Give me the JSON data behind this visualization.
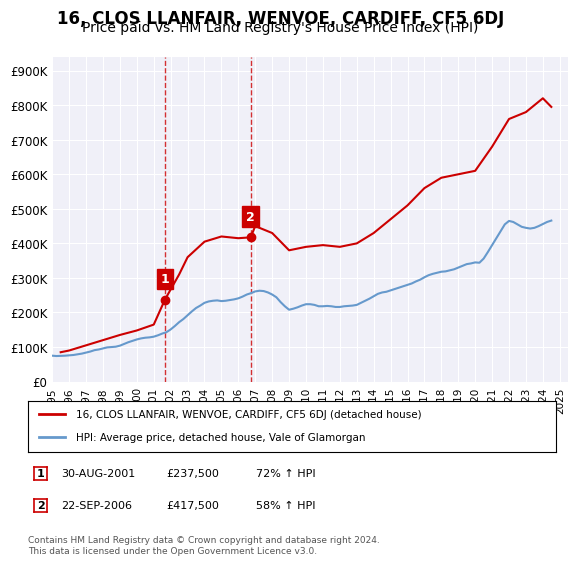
{
  "title": "16, CLOS LLANFAIR, WENVOE, CARDIFF, CF5 6DJ",
  "subtitle": "Price paid vs. HM Land Registry's House Price Index (HPI)",
  "title_fontsize": 12,
  "subtitle_fontsize": 10,
  "bg_color": "#ffffff",
  "plot_bg_color": "#f0f0f8",
  "ylabel_ticks": [
    "£0",
    "£100K",
    "£200K",
    "£300K",
    "£400K",
    "£500K",
    "£600K",
    "£700K",
    "£800K",
    "£900K"
  ],
  "ytick_values": [
    0,
    100000,
    200000,
    300000,
    400000,
    500000,
    600000,
    700000,
    800000,
    900000
  ],
  "ylim": [
    0,
    940000
  ],
  "xlim_start": 1995.0,
  "xlim_end": 2025.5,
  "xtick_years": [
    1995,
    1996,
    1997,
    1998,
    1999,
    2000,
    2001,
    2002,
    2003,
    2004,
    2005,
    2006,
    2007,
    2008,
    2009,
    2010,
    2011,
    2012,
    2013,
    2014,
    2015,
    2016,
    2017,
    2018,
    2019,
    2020,
    2021,
    2022,
    2023,
    2024,
    2025
  ],
  "red_line_color": "#cc0000",
  "blue_line_color": "#6699cc",
  "marker1_date": 2001.664,
  "marker1_label": "1",
  "marker1_price": 237500,
  "marker2_date": 2006.726,
  "marker2_label": "2",
  "marker2_price": 417500,
  "vline_color": "#cc0000",
  "annotation_box_color": "#cc0000",
  "legend_label_red": "16, CLOS LLANFAIR, WENVOE, CARDIFF, CF5 6DJ (detached house)",
  "legend_label_blue": "HPI: Average price, detached house, Vale of Glamorgan",
  "table_row1": [
    "1",
    "30-AUG-2001",
    "£237,500",
    "72% ↑ HPI"
  ],
  "table_row2": [
    "2",
    "22-SEP-2006",
    "£417,500",
    "58% ↑ HPI"
  ],
  "footer_text": "Contains HM Land Registry data © Crown copyright and database right 2024.\nThis data is licensed under the Open Government Licence v3.0.",
  "hpi_data": {
    "years": [
      1995.0,
      1995.25,
      1995.5,
      1995.75,
      1996.0,
      1996.25,
      1996.5,
      1996.75,
      1997.0,
      1997.25,
      1997.5,
      1997.75,
      1998.0,
      1998.25,
      1998.5,
      1998.75,
      1999.0,
      1999.25,
      1999.5,
      1999.75,
      2000.0,
      2000.25,
      2000.5,
      2000.75,
      2001.0,
      2001.25,
      2001.5,
      2001.75,
      2002.0,
      2002.25,
      2002.5,
      2002.75,
      2003.0,
      2003.25,
      2003.5,
      2003.75,
      2004.0,
      2004.25,
      2004.5,
      2004.75,
      2005.0,
      2005.25,
      2005.5,
      2005.75,
      2006.0,
      2006.25,
      2006.5,
      2006.75,
      2007.0,
      2007.25,
      2007.5,
      2007.75,
      2008.0,
      2008.25,
      2008.5,
      2008.75,
      2009.0,
      2009.25,
      2009.5,
      2009.75,
      2010.0,
      2010.25,
      2010.5,
      2010.75,
      2011.0,
      2011.25,
      2011.5,
      2011.75,
      2012.0,
      2012.25,
      2012.5,
      2012.75,
      2013.0,
      2013.25,
      2013.5,
      2013.75,
      2014.0,
      2014.25,
      2014.5,
      2014.75,
      2015.0,
      2015.25,
      2015.5,
      2015.75,
      2016.0,
      2016.25,
      2016.5,
      2016.75,
      2017.0,
      2017.25,
      2017.5,
      2017.75,
      2018.0,
      2018.25,
      2018.5,
      2018.75,
      2019.0,
      2019.25,
      2019.5,
      2019.75,
      2020.0,
      2020.25,
      2020.5,
      2020.75,
      2021.0,
      2021.25,
      2021.5,
      2021.75,
      2022.0,
      2022.25,
      2022.5,
      2022.75,
      2023.0,
      2023.25,
      2023.5,
      2023.75,
      2024.0,
      2024.25,
      2024.5
    ],
    "values": [
      75000,
      74000,
      74500,
      75000,
      76000,
      77000,
      79000,
      81000,
      84000,
      87000,
      91000,
      93000,
      96000,
      99000,
      100000,
      101000,
      104000,
      109000,
      114000,
      118000,
      122000,
      125000,
      127000,
      128000,
      130000,
      134000,
      139000,
      143000,
      151000,
      161000,
      172000,
      181000,
      192000,
      203000,
      213000,
      220000,
      228000,
      232000,
      234000,
      235000,
      233000,
      234000,
      236000,
      238000,
      241000,
      246000,
      252000,
      256000,
      261000,
      263000,
      262000,
      258000,
      252000,
      244000,
      230000,
      218000,
      208000,
      211000,
      215000,
      220000,
      224000,
      224000,
      222000,
      218000,
      218000,
      219000,
      218000,
      216000,
      216000,
      218000,
      219000,
      220000,
      222000,
      228000,
      234000,
      240000,
      247000,
      254000,
      258000,
      260000,
      264000,
      268000,
      272000,
      276000,
      280000,
      284000,
      290000,
      295000,
      302000,
      308000,
      312000,
      315000,
      318000,
      319000,
      322000,
      325000,
      330000,
      335000,
      340000,
      342000,
      345000,
      344000,
      356000,
      375000,
      395000,
      415000,
      435000,
      455000,
      465000,
      462000,
      455000,
      448000,
      445000,
      443000,
      445000,
      450000,
      456000,
      462000,
      466000
    ]
  },
  "price_data": {
    "years": [
      1995.5,
      1996.0,
      1997.0,
      1998.0,
      1999.0,
      2000.0,
      2001.0,
      2001.664,
      2002.5,
      2003.0,
      2004.0,
      2005.0,
      2006.0,
      2006.726,
      2007.0,
      2008.0,
      2009.0,
      2010.0,
      2011.0,
      2012.0,
      2013.0,
      2014.0,
      2015.0,
      2016.0,
      2017.0,
      2018.0,
      2019.0,
      2020.0,
      2021.0,
      2022.0,
      2023.0,
      2024.0,
      2024.5
    ],
    "values": [
      85000,
      90000,
      105000,
      120000,
      135000,
      148000,
      165000,
      237500,
      310000,
      360000,
      405000,
      420000,
      415000,
      417500,
      450000,
      430000,
      380000,
      390000,
      395000,
      390000,
      400000,
      430000,
      470000,
      510000,
      560000,
      590000,
      600000,
      610000,
      680000,
      760000,
      780000,
      820000,
      795000
    ]
  }
}
